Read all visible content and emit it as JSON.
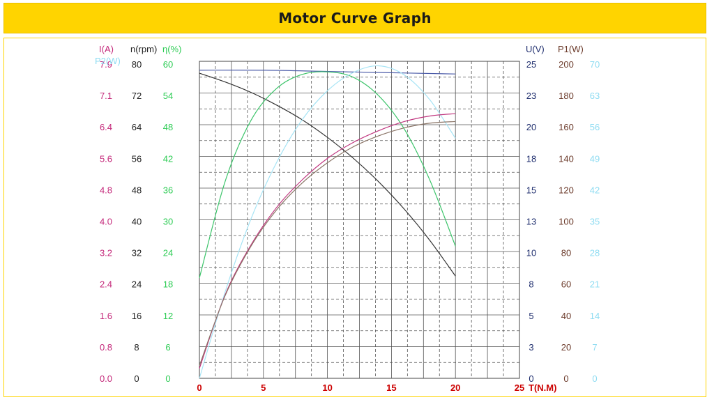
{
  "header": {
    "title": "Motor Curve Graph"
  },
  "chart_data": {
    "type": "line",
    "title": "Motor Curve Graph",
    "x": {
      "label": "T(N.M)",
      "range": [
        0,
        25
      ],
      "ticks": [
        "0",
        "5",
        "10",
        "15",
        "20",
        "25"
      ],
      "color": "#cc0000"
    },
    "grid": true,
    "axes": [
      {
        "id": "I",
        "label": "I(A)",
        "color": "#c4287a",
        "range": [
          0,
          8.0
        ],
        "ticks": [
          "0.0",
          "0.8",
          "1.6",
          "2.4",
          "3.2",
          "4.0",
          "4.8",
          "5.6",
          "6.4",
          "7.1",
          "7.9"
        ]
      },
      {
        "id": "n",
        "label": "n(rpm)",
        "color": "#222222",
        "range": [
          0,
          80
        ],
        "ticks": [
          "0",
          "8",
          "16",
          "24",
          "32",
          "40",
          "48",
          "56",
          "64",
          "72",
          "80"
        ]
      },
      {
        "id": "eta",
        "label": "η(%)",
        "color": "#2ecc55",
        "range": [
          0,
          60
        ],
        "ticks": [
          "0",
          "6",
          "12",
          "18",
          "24",
          "30",
          "36",
          "42",
          "48",
          "54",
          "60"
        ]
      },
      {
        "id": "U",
        "label": "U(V)",
        "color": "#1f2e6e",
        "range": [
          0,
          25
        ],
        "ticks": [
          "0",
          "3",
          "5",
          "8",
          "10",
          "13",
          "15",
          "18",
          "20",
          "23",
          "25"
        ]
      },
      {
        "id": "P1",
        "label": "P1(W)",
        "color": "#6b3a2a",
        "range": [
          0,
          200
        ],
        "ticks": [
          "0",
          "20",
          "40",
          "60",
          "80",
          "100",
          "120",
          "140",
          "160",
          "180",
          "200"
        ]
      },
      {
        "id": "P2",
        "label": "P2(W)",
        "color": "#8fdcf2",
        "range": [
          0,
          70
        ],
        "ticks": [
          "0",
          "7",
          "14",
          "21",
          "28",
          "35",
          "42",
          "49",
          "56",
          "63",
          "70"
        ]
      }
    ],
    "series": [
      {
        "axis": "U",
        "color": "#4a5aa8",
        "x": [
          0,
          5,
          10,
          15,
          20
        ],
        "y": [
          24.3,
          24.3,
          24.2,
          24.1,
          24.0
        ]
      },
      {
        "axis": "n",
        "color": "#333333",
        "x": [
          0,
          2,
          4,
          6,
          8,
          10,
          12,
          14,
          16,
          18,
          20
        ],
        "y": [
          77,
          74.8,
          72.2,
          69,
          65.3,
          60.8,
          55.6,
          49.6,
          42.7,
          34.8,
          25.8
        ]
      },
      {
        "axis": "eta",
        "color": "#3cc46a",
        "x": [
          0,
          2,
          4,
          6,
          8,
          10,
          12,
          14,
          16,
          18,
          20
        ],
        "y": [
          19,
          37.2,
          48.7,
          54.8,
          57.5,
          58.0,
          57.0,
          53.5,
          47.2,
          37.5,
          25.0
        ]
      },
      {
        "axis": "P2",
        "color": "#a6e4f5",
        "x": [
          0,
          2,
          4,
          6,
          8,
          10,
          12,
          14,
          16,
          18,
          20
        ],
        "y": [
          0,
          19,
          35,
          47.5,
          57,
          63.5,
          67.5,
          69,
          67,
          61.5,
          53
        ]
      },
      {
        "axis": "I",
        "color": "#c0367f",
        "x": [
          0,
          2,
          4,
          6,
          8,
          10,
          12,
          14,
          16,
          18,
          20
        ],
        "y": [
          0.25,
          2.1,
          3.35,
          4.3,
          5.0,
          5.55,
          5.95,
          6.25,
          6.48,
          6.62,
          6.68
        ]
      },
      {
        "axis": "P1",
        "color": "#8a7466",
        "x": [
          0,
          2,
          4,
          6,
          8,
          10,
          12,
          14,
          16,
          18,
          20
        ],
        "y": [
          8,
          52,
          83,
          106,
          123,
          136,
          146,
          153,
          158,
          161,
          162
        ]
      }
    ]
  }
}
